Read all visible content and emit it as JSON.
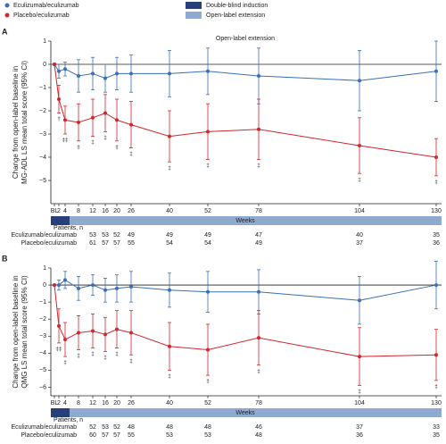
{
  "chart_data": [
    {
      "type": "line",
      "panel": "A",
      "ylabel": [
        "Change from open-label baseline in",
        "MG-ADL LS mean total score (95% CI)"
      ],
      "annotation": "Open-label extension",
      "phases": [
        {
          "name": "Double-blind induction",
          "color": "#27407a"
        },
        {
          "name": "Open-label extension",
          "color": "#8fa9cf"
        }
      ],
      "categories": [
        "BL",
        "2",
        "4",
        "8",
        "12",
        "16",
        "20",
        "26",
        "40",
        "52",
        "78",
        "104",
        "130"
      ],
      "xlabel": "Weeks",
      "patients_label": "Patients, n",
      "ylim": [
        -6,
        1
      ],
      "yticks": [
        1,
        0,
        {
          "value": -1,
          "label": "−1"
        },
        {
          "value": -2,
          "label": "−2"
        },
        {
          "value": -3,
          "label": "−3"
        },
        {
          "value": -4,
          "label": "−4"
        },
        {
          "value": -5,
          "label": "−5"
        }
      ],
      "series": [
        {
          "name": "Eculizumab/eculizumab",
          "color": "#3a6fb5",
          "values": [
            0,
            -0.3,
            -0.2,
            -0.5,
            -0.4,
            -0.6,
            -0.4,
            -0.4,
            -0.4,
            -0.3,
            -0.5,
            -0.7,
            -0.3
          ],
          "errors": [
            null,
            0.3,
            0.3,
            0.7,
            0.7,
            0.6,
            0.7,
            0.8,
            1.0,
            1.0,
            1.2,
            1.3,
            1.3
          ],
          "markers": [
            null,
            null,
            null,
            null,
            null,
            null,
            null,
            null,
            null,
            null,
            null,
            null,
            null
          ],
          "patients": [
            null,
            null,
            null,
            null,
            53,
            53,
            52,
            49,
            49,
            49,
            47,
            40,
            35
          ]
        },
        {
          "name": "Placebo/eculizumab",
          "color": "#d0262d",
          "values": [
            0,
            -1.5,
            -2.4,
            -2.5,
            -2.3,
            -2.1,
            -2.4,
            -2.6,
            -3.1,
            -2.9,
            -2.8,
            -3.5,
            -4.0
          ],
          "errors": [
            null,
            0.6,
            0.6,
            0.8,
            0.8,
            0.8,
            0.9,
            1.0,
            1.1,
            1.2,
            1.3,
            1.2,
            0.8
          ],
          "markers": [
            null,
            "†",
            "‡‡",
            "‡",
            "‡",
            "‡",
            "‡",
            "‡",
            "‡",
            "‡",
            "‡",
            "‡",
            "‡"
          ],
          "patients": [
            null,
            null,
            null,
            null,
            61,
            57,
            57,
            55,
            54,
            54,
            49,
            37,
            36
          ]
        }
      ]
    },
    {
      "type": "line",
      "panel": "B",
      "ylabel": [
        "Change from open-label baseline in",
        "QMG LS mean total score (95% CI)"
      ],
      "categories": [
        "BL",
        "2",
        "4",
        "8",
        "12",
        "16",
        "20",
        "26",
        "40",
        "52",
        "78",
        "104",
        "130"
      ],
      "xlabel": "Weeks",
      "patients_label": "Patients, n",
      "ylim": [
        -6.5,
        1
      ],
      "yticks": [
        1,
        0,
        {
          "value": -1,
          "label": "−1"
        },
        {
          "value": -2,
          "label": "−2"
        },
        {
          "value": -3,
          "label": "−3"
        },
        {
          "value": -4,
          "label": "−4"
        },
        {
          "value": -5,
          "label": "−5"
        },
        {
          "value": -6,
          "label": "−6"
        }
      ],
      "series": [
        {
          "name": "Eculizumab/eculizumab",
          "color": "#3a6fb5",
          "values": [
            0,
            0,
            0.3,
            -0.2,
            0,
            -0.3,
            -0.2,
            -0.1,
            -0.3,
            -0.4,
            -0.4,
            -0.9,
            0
          ],
          "errors": [
            null,
            0.3,
            0.5,
            0.7,
            0.6,
            0.7,
            0.8,
            0.9,
            1.0,
            1.2,
            1.3,
            1.4,
            1.4
          ],
          "markers": [
            null,
            null,
            null,
            null,
            null,
            null,
            null,
            null,
            null,
            null,
            null,
            null,
            null
          ],
          "patients": [
            null,
            null,
            null,
            null,
            52,
            53,
            52,
            48,
            48,
            48,
            46,
            37,
            33
          ]
        },
        {
          "name": "Placebo/eculizumab",
          "color": "#d0262d",
          "values": [
            0,
            -2.4,
            -3.2,
            -2.8,
            -2.7,
            -2.9,
            -2.6,
            -2.8,
            -3.6,
            -3.8,
            -3.1,
            -4.2,
            -4.1
          ],
          "errors": [
            null,
            1.0,
            1.0,
            1.0,
            1.0,
            1.0,
            1.1,
            1.3,
            1.4,
            1.5,
            1.6,
            1.7,
            1.5
          ],
          "markers": [
            null,
            "‡‡",
            "‡",
            "‡",
            "‡",
            "‡",
            "‡",
            "‡",
            "‡",
            "‡",
            "‡",
            "‡",
            "‡"
          ],
          "patients": [
            null,
            null,
            null,
            null,
            60,
            57,
            57,
            55,
            53,
            53,
            48,
            36,
            35
          ]
        }
      ]
    }
  ]
}
